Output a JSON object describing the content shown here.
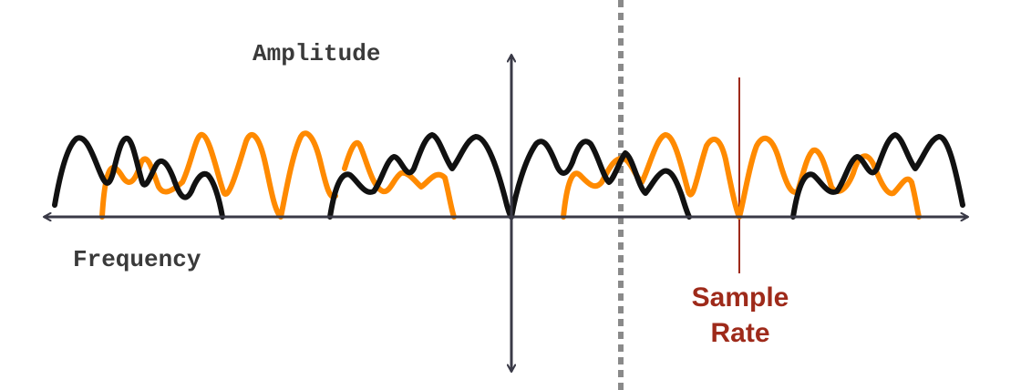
{
  "labels": {
    "amplitude": "Amplitude",
    "frequency": "Frequency",
    "sample_rate_line1": "Sample",
    "sample_rate_line2": "Rate"
  },
  "colors": {
    "axis": "#3a3a47",
    "black_wave": "#111111",
    "orange_wave": "#ff8a00",
    "sample_rate": "#9e2a1a",
    "nyquist_dashed": "#8a8a8a"
  }
}
